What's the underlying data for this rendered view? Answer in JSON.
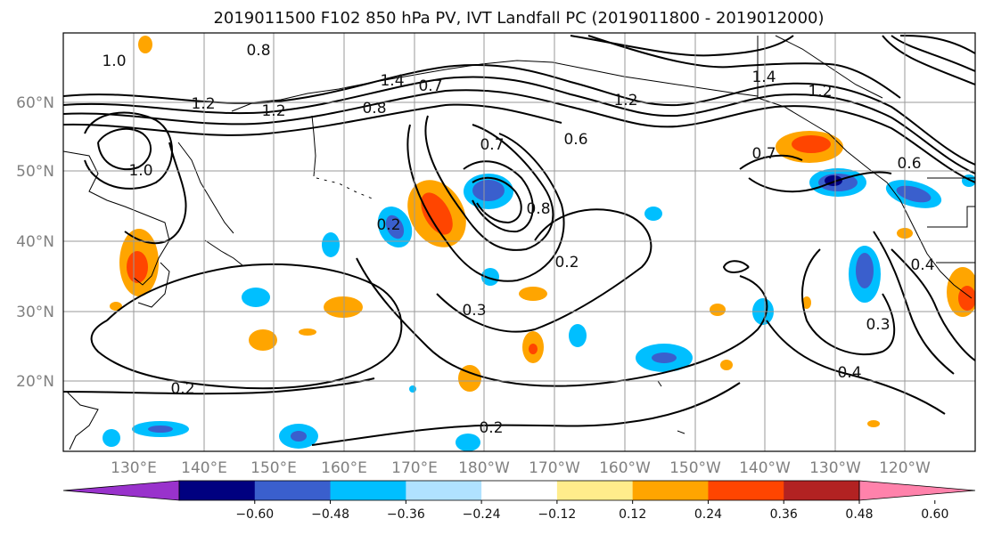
{
  "title": "2019011500 F102 850 hPa PV, IVT Landfall PC (2019011800 - 2019012000)",
  "lat_labels": [
    "60°N",
    "50°N",
    "40°N",
    "30°N",
    "20°N"
  ],
  "lon_labels": [
    "130°E",
    "140°E",
    "150°E",
    "160°E",
    "170°E",
    "180°W",
    "170°W",
    "160°W",
    "150°W",
    "140°W",
    "130°W",
    "120°W"
  ],
  "contour_labels": [
    "1.0",
    "0.8",
    "1.2",
    "1.2",
    "1.0",
    "1.4",
    "0.8",
    "0.7",
    "0.7",
    "0.6",
    "1.2",
    "1.4",
    "1.2",
    "0.7",
    "0.6",
    "0.2",
    "0.8",
    "0.2",
    "0.3",
    "0.2",
    "0.2",
    "0.3",
    "0.4",
    "0.4"
  ],
  "colorbar": {
    "colors": [
      "#9932cc",
      "#000080",
      "#3a5fcd",
      "#00bfff",
      "#b0e2ff",
      "#ffffff",
      "#ffec8b",
      "#ffa500",
      "#ff4500",
      "#b22222",
      "#ff82ab"
    ],
    "tick_labels": [
      "−0.60",
      "−0.48",
      "−0.36",
      "−0.24",
      "−0.12",
      "0.12",
      "0.24",
      "0.36",
      "0.48",
      "0.60"
    ]
  }
}
